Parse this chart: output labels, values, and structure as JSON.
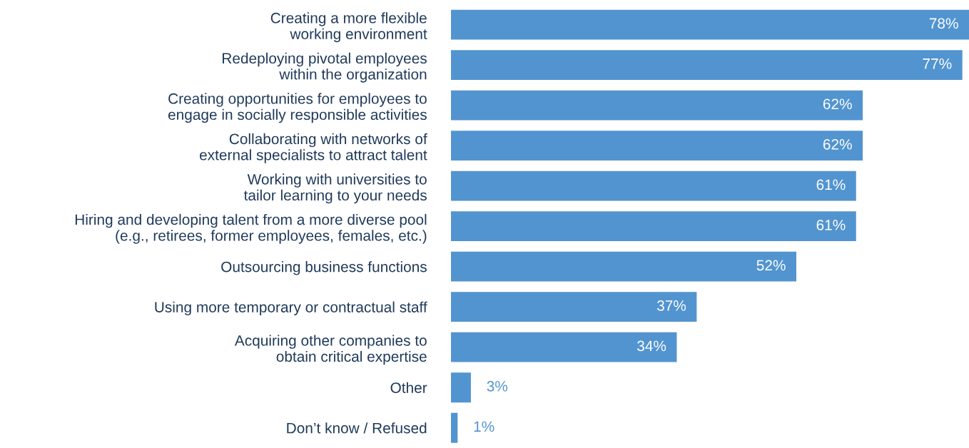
{
  "chart_data": {
    "type": "bar",
    "orientation": "horizontal",
    "categories": [
      "Creating a more flexible\nworking environment",
      "Redeploying pivotal employees\nwithin the organization",
      "Creating opportunities for employees to\nengage in socially responsible activities",
      "Collaborating with networks of\nexternal specialists to attract talent",
      "Working with universities to\ntailor learning to your needs",
      "Hiring and developing talent from a more diverse pool\n(e.g., retirees, former employees, females, etc.)",
      "Outsourcing business functions",
      "Using more temporary or contractual staff",
      "Acquiring other companies to\nobtain critical expertise",
      "Other",
      "Don’t know / Refused"
    ],
    "values": [
      78,
      77,
      62,
      62,
      61,
      61,
      52,
      37,
      34,
      3,
      1
    ],
    "value_labels": [
      "78%",
      "77%",
      "62%",
      "62%",
      "61%",
      "61%",
      "52%",
      "37%",
      "34%",
      "3%",
      "1%"
    ],
    "color": "#5294d0",
    "tick_labels": "y",
    "grid": false,
    "legend": false
  }
}
